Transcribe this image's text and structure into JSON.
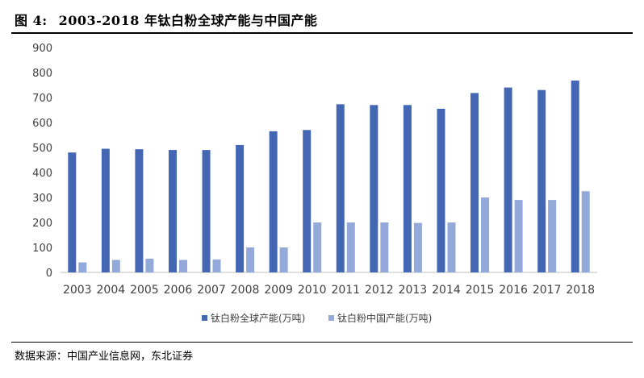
{
  "figure": {
    "label": "图  4:",
    "title": "2003-2018 年钛白粉全球产能与中国产能"
  },
  "source": "数据来源：中国产业信息网，东北证券",
  "chart_data": {
    "type": "bar",
    "categories": [
      "2003",
      "2004",
      "2005",
      "2006",
      "2007",
      "2008",
      "2009",
      "2010",
      "2011",
      "2012",
      "2013",
      "2014",
      "2015",
      "2016",
      "2017",
      "2018"
    ],
    "series": [
      {
        "name": "钛白粉全球产能(万吨)",
        "color": "#4467b4",
        "values": [
          480,
          495,
          493,
          490,
          490,
          510,
          565,
          570,
          673,
          670,
          670,
          655,
          718,
          740,
          730,
          768
        ]
      },
      {
        "name": "钛白粉中国产能(万吨)",
        "color": "#93a9da",
        "values": [
          40,
          50,
          55,
          50,
          52,
          100,
          100,
          200,
          200,
          200,
          198,
          200,
          300,
          290,
          290,
          325
        ]
      }
    ],
    "ylim": [
      0,
      900
    ],
    "yticks": [
      0,
      100,
      200,
      300,
      400,
      500,
      600,
      700,
      800,
      900
    ],
    "grid": false,
    "legend_position": "bottom"
  }
}
